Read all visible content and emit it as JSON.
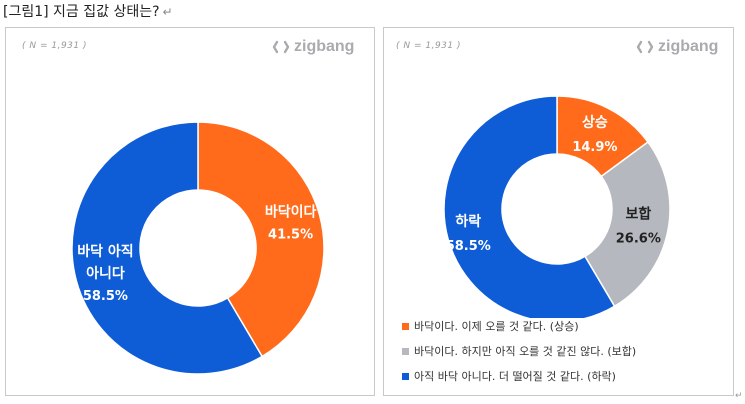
{
  "caption": {
    "text": "[그림1] 지금 집값 상태는?",
    "return_mark": "↵"
  },
  "brand": {
    "name": "zigbang"
  },
  "colors": {
    "orange": "#FF6B1A",
    "blue": "#0F5DD6",
    "gray": "#B5B8BE"
  },
  "chart_data": [
    {
      "type": "pie",
      "note": "( N = 1,931 )",
      "slices": [
        {
          "label": "바닥이다",
          "value": 41.5,
          "value_label": "41.5%",
          "color": "#FF6B1A"
        },
        {
          "label": "바닥 아직|아니다",
          "value": 58.5,
          "value_label": "58.5%",
          "color": "#0F5DD6"
        }
      ]
    },
    {
      "type": "pie",
      "note": "( N = 1,931 )",
      "slices": [
        {
          "label": "상승",
          "value": 14.9,
          "value_label": "14.9%",
          "color": "#FF6B1A"
        },
        {
          "label": "보합",
          "value": 26.6,
          "value_label": "26.6%",
          "color": "#B5B8BE"
        },
        {
          "label": "하락",
          "value": 58.5,
          "value_label": "58.5%",
          "color": "#0F5DD6"
        }
      ],
      "legend": [
        {
          "text": "바닥이다. 이제 오를 것 같다. (상승)",
          "color": "#FF6B1A"
        },
        {
          "text": "바닥이다. 하지만 아직 오를 것 같진 않다. (보합)",
          "color": "#B5B8BE"
        },
        {
          "text": "아직 바닥 아니다. 더 떨어질 것 같다. (하락)",
          "color": "#0F5DD6"
        }
      ]
    }
  ],
  "corner_mark": "↵"
}
